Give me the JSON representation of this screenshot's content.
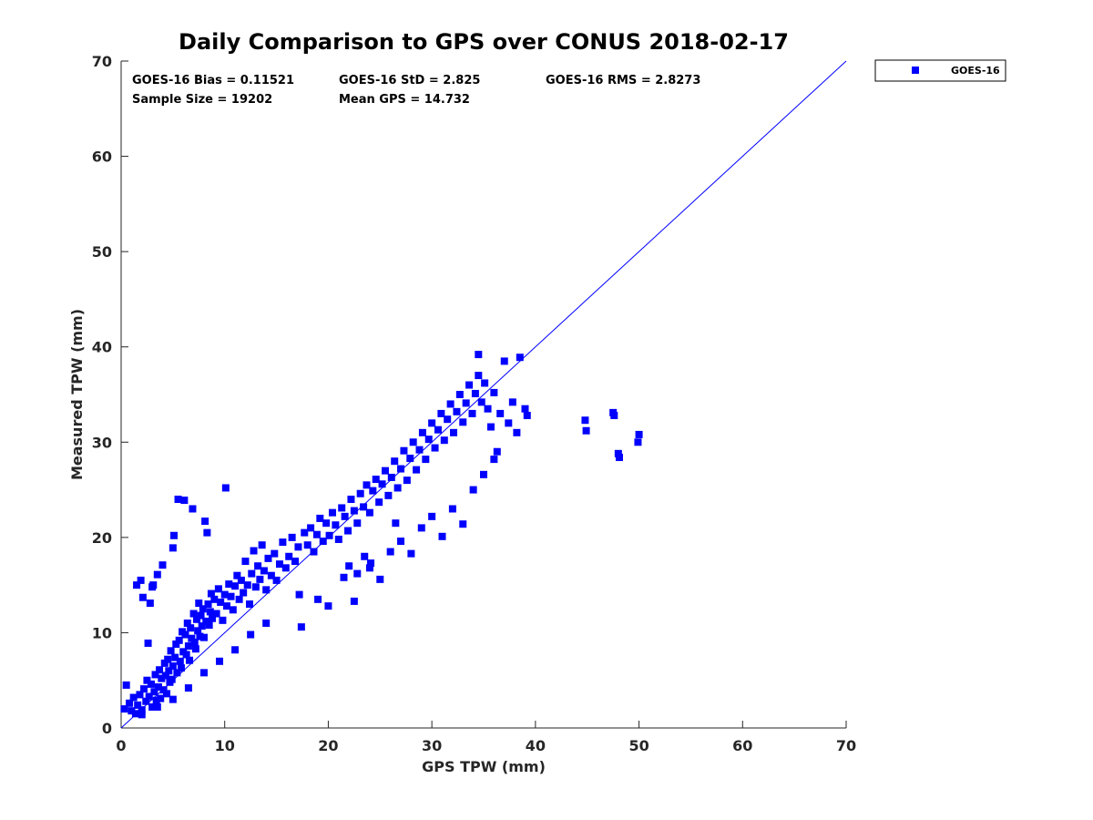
{
  "chart_data": {
    "type": "scatter",
    "title": "Daily Comparison to GPS over CONUS 2018-02-17",
    "xlabel": "GPS TPW (mm)",
    "ylabel": "Measured TPW (mm)",
    "xlim": [
      0,
      70
    ],
    "ylim": [
      0,
      70
    ],
    "xticks": [
      "0",
      "10",
      "20",
      "30",
      "40",
      "50",
      "60",
      "70"
    ],
    "yticks": [
      "0",
      "10",
      "20",
      "30",
      "40",
      "50",
      "60",
      "70"
    ],
    "grid": false,
    "legend_position": "outside-top-right",
    "stats": {
      "bias": "GOES-16 Bias = 0.11521",
      "std": "GOES-16 StD = 2.825",
      "rms": "GOES-16 RMS = 2.8273",
      "sample_size": "Sample Size = 19202",
      "mean_gps": "Mean GPS = 14.732"
    },
    "reference_line": {
      "name": "1:1 line",
      "x": [
        0,
        70
      ],
      "y": [
        0,
        70
      ]
    },
    "series": [
      {
        "name": "GOES-16",
        "color": "#0000ff",
        "marker": "square",
        "points": [
          [
            0.3,
            2.0
          ],
          [
            0.5,
            4.5
          ],
          [
            0.8,
            2.6
          ],
          [
            1.0,
            1.8
          ],
          [
            1.2,
            3.2
          ],
          [
            1.4,
            1.5
          ],
          [
            1.5,
            15.0
          ],
          [
            1.6,
            2.4
          ],
          [
            1.8,
            3.5
          ],
          [
            1.9,
            15.5
          ],
          [
            2.0,
            1.9
          ],
          [
            2.1,
            13.7
          ],
          [
            2.2,
            4.1
          ],
          [
            2.4,
            2.8
          ],
          [
            2.5,
            5.0
          ],
          [
            2.6,
            8.9
          ],
          [
            2.7,
            3.3
          ],
          [
            2.8,
            13.1
          ],
          [
            2.9,
            4.6
          ],
          [
            3.0,
            2.2
          ],
          [
            3.0,
            14.8
          ],
          [
            3.1,
            15.0
          ],
          [
            3.2,
            3.8
          ],
          [
            3.3,
            5.6
          ],
          [
            3.4,
            2.9
          ],
          [
            3.5,
            16.1
          ],
          [
            3.6,
            4.3
          ],
          [
            3.7,
            6.1
          ],
          [
            3.8,
            3.1
          ],
          [
            3.9,
            5.2
          ],
          [
            4.0,
            17.1
          ],
          [
            4.1,
            4.0
          ],
          [
            4.2,
            6.8
          ],
          [
            4.3,
            5.5
          ],
          [
            4.4,
            3.6
          ],
          [
            4.5,
            7.2
          ],
          [
            4.6,
            6.0
          ],
          [
            4.7,
            4.8
          ],
          [
            4.8,
            8.1
          ],
          [
            4.9,
            5.1
          ],
          [
            5.0,
            6.5
          ],
          [
            5.0,
            18.9
          ],
          [
            5.1,
            20.2
          ],
          [
            5.2,
            7.4
          ],
          [
            5.3,
            8.8
          ],
          [
            5.4,
            5.8
          ],
          [
            5.5,
            24.0
          ],
          [
            5.6,
            9.2
          ],
          [
            5.7,
            7.0
          ],
          [
            5.8,
            6.3
          ],
          [
            5.9,
            10.1
          ],
          [
            6.0,
            8.0
          ],
          [
            6.1,
            23.9
          ],
          [
            6.2,
            9.8
          ],
          [
            6.3,
            7.7
          ],
          [
            6.4,
            11.0
          ],
          [
            6.5,
            8.6
          ],
          [
            6.6,
            7.1
          ],
          [
            6.7,
            10.5
          ],
          [
            6.8,
            9.4
          ],
          [
            6.9,
            23.0
          ],
          [
            7.0,
            12.0
          ],
          [
            7.1,
            9.0
          ],
          [
            7.2,
            8.3
          ],
          [
            7.3,
            11.4
          ],
          [
            7.4,
            10.2
          ],
          [
            7.5,
            13.1
          ],
          [
            7.6,
            9.6
          ],
          [
            7.7,
            11.8
          ],
          [
            7.8,
            10.7
          ],
          [
            7.9,
            12.5
          ],
          [
            8.0,
            9.5
          ],
          [
            8.1,
            21.7
          ],
          [
            8.2,
            11.2
          ],
          [
            8.3,
            20.5
          ],
          [
            8.4,
            13.0
          ],
          [
            8.5,
            10.8
          ],
          [
            8.6,
            12.2
          ],
          [
            8.7,
            14.1
          ],
          [
            8.8,
            11.5
          ],
          [
            9.0,
            13.5
          ],
          [
            9.2,
            12.0
          ],
          [
            9.4,
            14.6
          ],
          [
            9.6,
            13.2
          ],
          [
            9.8,
            11.3
          ],
          [
            10.0,
            14.0
          ],
          [
            10.1,
            25.2
          ],
          [
            10.2,
            12.8
          ],
          [
            10.4,
            15.1
          ],
          [
            10.6,
            13.8
          ],
          [
            10.8,
            12.4
          ],
          [
            11.0,
            14.9
          ],
          [
            11.2,
            16.0
          ],
          [
            11.4,
            13.5
          ],
          [
            11.6,
            15.5
          ],
          [
            11.8,
            14.2
          ],
          [
            12.0,
            17.5
          ],
          [
            12.2,
            15.0
          ],
          [
            12.4,
            13.0
          ],
          [
            12.6,
            16.2
          ],
          [
            12.8,
            18.6
          ],
          [
            13.0,
            14.8
          ],
          [
            13.2,
            17.0
          ],
          [
            13.4,
            15.6
          ],
          [
            13.6,
            19.2
          ],
          [
            13.8,
            16.5
          ],
          [
            14.0,
            14.5
          ],
          [
            14.2,
            17.8
          ],
          [
            14.5,
            16.0
          ],
          [
            14.8,
            18.3
          ],
          [
            15.0,
            15.5
          ],
          [
            15.3,
            17.2
          ],
          [
            15.6,
            19.5
          ],
          [
            15.9,
            16.8
          ],
          [
            16.2,
            18.0
          ],
          [
            16.5,
            20.0
          ],
          [
            16.8,
            17.5
          ],
          [
            17.1,
            19.0
          ],
          [
            17.4,
            10.6
          ],
          [
            17.7,
            20.5
          ],
          [
            18.0,
            19.2
          ],
          [
            18.3,
            21.0
          ],
          [
            18.6,
            18.5
          ],
          [
            18.9,
            20.3
          ],
          [
            19.2,
            22.0
          ],
          [
            19.5,
            19.6
          ],
          [
            19.8,
            21.5
          ],
          [
            20.1,
            20.2
          ],
          [
            20.4,
            22.6
          ],
          [
            20.7,
            21.3
          ],
          [
            21.0,
            19.8
          ],
          [
            21.3,
            23.1
          ],
          [
            21.6,
            22.2
          ],
          [
            21.9,
            20.7
          ],
          [
            22.2,
            24.0
          ],
          [
            22.5,
            22.8
          ],
          [
            22.8,
            21.5
          ],
          [
            23.1,
            24.6
          ],
          [
            23.4,
            23.2
          ],
          [
            23.7,
            25.5
          ],
          [
            24.0,
            22.6
          ],
          [
            24.3,
            24.9
          ],
          [
            24.6,
            26.1
          ],
          [
            24.9,
            23.7
          ],
          [
            25.2,
            25.6
          ],
          [
            25.5,
            27.0
          ],
          [
            25.8,
            24.4
          ],
          [
            26.1,
            26.3
          ],
          [
            26.4,
            28.0
          ],
          [
            26.7,
            25.2
          ],
          [
            27.0,
            27.2
          ],
          [
            27.3,
            29.1
          ],
          [
            27.6,
            26.0
          ],
          [
            27.9,
            28.3
          ],
          [
            28.2,
            30.0
          ],
          [
            28.5,
            27.1
          ],
          [
            28.8,
            29.2
          ],
          [
            29.1,
            31.0
          ],
          [
            29.4,
            28.2
          ],
          [
            29.7,
            30.3
          ],
          [
            30.0,
            32.0
          ],
          [
            30.3,
            29.4
          ],
          [
            30.6,
            31.3
          ],
          [
            30.9,
            33.0
          ],
          [
            31.2,
            30.2
          ],
          [
            31.5,
            32.4
          ],
          [
            31.8,
            34.0
          ],
          [
            32.1,
            31.0
          ],
          [
            32.4,
            33.2
          ],
          [
            32.7,
            35.0
          ],
          [
            33.0,
            32.1
          ],
          [
            33.3,
            34.1
          ],
          [
            33.6,
            36.0
          ],
          [
            33.9,
            33.0
          ],
          [
            34.2,
            35.1
          ],
          [
            34.5,
            37.0
          ],
          [
            34.8,
            34.2
          ],
          [
            35.1,
            36.2
          ],
          [
            35.4,
            33.5
          ],
          [
            35.7,
            31.6
          ],
          [
            36.0,
            35.2
          ],
          [
            36.3,
            29.0
          ],
          [
            36.6,
            33.0
          ],
          [
            37.0,
            38.5
          ],
          [
            37.4,
            32.0
          ],
          [
            37.8,
            34.2
          ],
          [
            38.2,
            31.0
          ],
          [
            38.5,
            38.9
          ],
          [
            39.0,
            33.5
          ],
          [
            39.2,
            32.8
          ],
          [
            34.5,
            39.2
          ],
          [
            21.5,
            15.8
          ],
          [
            22.0,
            17.0
          ],
          [
            22.8,
            16.2
          ],
          [
            23.5,
            18.0
          ],
          [
            24.1,
            17.3
          ],
          [
            25.0,
            15.6
          ],
          [
            26.0,
            18.5
          ],
          [
            27.0,
            19.6
          ],
          [
            28.0,
            18.3
          ],
          [
            29.0,
            21.0
          ],
          [
            30.0,
            22.2
          ],
          [
            31.0,
            20.1
          ],
          [
            32.0,
            23.0
          ],
          [
            33.0,
            21.4
          ],
          [
            34.0,
            25.0
          ],
          [
            35.0,
            26.6
          ],
          [
            36.0,
            28.2
          ],
          [
            19.0,
            13.5
          ],
          [
            20.0,
            12.8
          ],
          [
            17.2,
            14.0
          ],
          [
            14.0,
            11.0
          ],
          [
            12.5,
            9.8
          ],
          [
            11.0,
            8.2
          ],
          [
            9.5,
            7.0
          ],
          [
            8.0,
            5.8
          ],
          [
            6.5,
            4.2
          ],
          [
            5.0,
            3.0
          ],
          [
            3.5,
            2.2
          ],
          [
            2.0,
            1.4
          ],
          [
            22.5,
            13.3
          ],
          [
            24.0,
            16.8
          ],
          [
            26.5,
            21.5
          ],
          [
            44.8,
            32.3
          ],
          [
            44.9,
            31.2
          ],
          [
            47.5,
            33.1
          ],
          [
            47.6,
            32.8
          ],
          [
            48.0,
            28.8
          ],
          [
            48.1,
            28.4
          ],
          [
            50.0,
            30.8
          ],
          [
            49.9,
            30.0
          ]
        ]
      }
    ]
  }
}
